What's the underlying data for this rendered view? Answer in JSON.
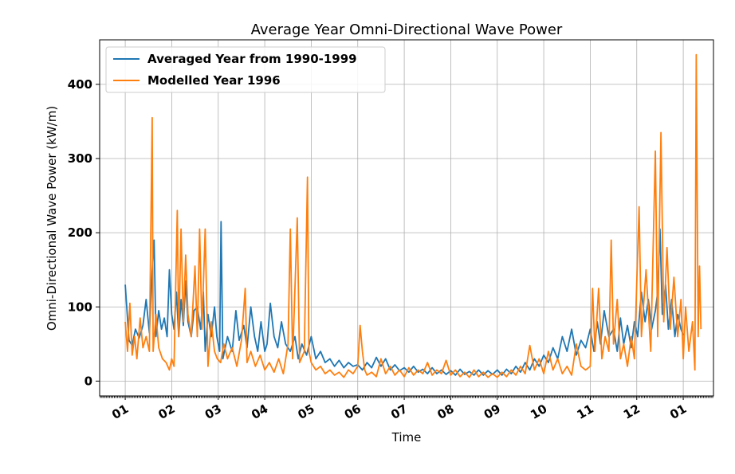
{
  "chart_data": {
    "type": "line",
    "title": "Average Year Omni-Directional Wave Power",
    "xlabel": "Time",
    "ylabel": "Omni-Directional Wave Power (kW/m)",
    "x_ticks": [
      "01",
      "02",
      "03",
      "04",
      "05",
      "06",
      "07",
      "08",
      "09",
      "10",
      "11",
      "12",
      "01"
    ],
    "x_unit": "month",
    "xlim": [
      -0.55,
      12.65
    ],
    "ylim": [
      -20,
      460
    ],
    "y_ticks": [
      0,
      100,
      200,
      300,
      400
    ],
    "grid": true,
    "legend_position": "top-left",
    "series": [
      {
        "name": "Averaged Year from 1990-1999",
        "color": "#1f77b4",
        "points": [
          [
            0.0,
            130
          ],
          [
            0.08,
            55
          ],
          [
            0.15,
            48
          ],
          [
            0.22,
            70
          ],
          [
            0.3,
            58
          ],
          [
            0.38,
            75
          ],
          [
            0.45,
            110
          ],
          [
            0.52,
            65
          ],
          [
            0.58,
            148
          ],
          [
            0.62,
            190
          ],
          [
            0.66,
            60
          ],
          [
            0.72,
            95
          ],
          [
            0.78,
            70
          ],
          [
            0.84,
            85
          ],
          [
            0.9,
            60
          ],
          [
            0.95,
            150
          ],
          [
            1.0,
            90
          ],
          [
            1.05,
            70
          ],
          [
            1.1,
            120
          ],
          [
            1.15,
            60
          ],
          [
            1.2,
            110
          ],
          [
            1.25,
            75
          ],
          [
            1.3,
            135
          ],
          [
            1.35,
            80
          ],
          [
            1.42,
            60
          ],
          [
            1.48,
            95
          ],
          [
            1.55,
            100
          ],
          [
            1.62,
            70
          ],
          [
            1.68,
            120
          ],
          [
            1.72,
            40
          ],
          [
            1.78,
            90
          ],
          [
            1.85,
            60
          ],
          [
            1.92,
            100
          ],
          [
            1.97,
            60
          ],
          [
            2.03,
            40
          ],
          [
            2.06,
            215
          ],
          [
            2.1,
            30
          ],
          [
            2.2,
            60
          ],
          [
            2.3,
            40
          ],
          [
            2.38,
            95
          ],
          [
            2.45,
            55
          ],
          [
            2.55,
            75
          ],
          [
            2.62,
            45
          ],
          [
            2.7,
            100
          ],
          [
            2.78,
            60
          ],
          [
            2.85,
            40
          ],
          [
            2.92,
            80
          ],
          [
            3.0,
            40
          ],
          [
            3.05,
            50
          ],
          [
            3.12,
            105
          ],
          [
            3.2,
            60
          ],
          [
            3.28,
            45
          ],
          [
            3.36,
            80
          ],
          [
            3.45,
            50
          ],
          [
            3.55,
            40
          ],
          [
            3.65,
            60
          ],
          [
            3.72,
            30
          ],
          [
            3.8,
            50
          ],
          [
            3.9,
            35
          ],
          [
            4.0,
            60
          ],
          [
            4.1,
            30
          ],
          [
            4.2,
            40
          ],
          [
            4.3,
            25
          ],
          [
            4.4,
            30
          ],
          [
            4.5,
            20
          ],
          [
            4.6,
            28
          ],
          [
            4.7,
            18
          ],
          [
            4.8,
            25
          ],
          [
            4.9,
            20
          ],
          [
            5.0,
            22
          ],
          [
            5.1,
            15
          ],
          [
            5.2,
            25
          ],
          [
            5.3,
            18
          ],
          [
            5.4,
            32
          ],
          [
            5.5,
            20
          ],
          [
            5.6,
            30
          ],
          [
            5.7,
            15
          ],
          [
            5.8,
            22
          ],
          [
            5.9,
            14
          ],
          [
            6.0,
            18
          ],
          [
            6.1,
            12
          ],
          [
            6.2,
            20
          ],
          [
            6.3,
            12
          ],
          [
            6.4,
            16
          ],
          [
            6.5,
            10
          ],
          [
            6.6,
            18
          ],
          [
            6.7,
            10
          ],
          [
            6.8,
            15
          ],
          [
            6.9,
            9
          ],
          [
            7.0,
            14
          ],
          [
            7.1,
            8
          ],
          [
            7.2,
            16
          ],
          [
            7.3,
            9
          ],
          [
            7.4,
            13
          ],
          [
            7.5,
            8
          ],
          [
            7.6,
            15
          ],
          [
            7.7,
            8
          ],
          [
            7.8,
            14
          ],
          [
            7.9,
            9
          ],
          [
            8.0,
            15
          ],
          [
            8.1,
            8
          ],
          [
            8.2,
            16
          ],
          [
            8.3,
            10
          ],
          [
            8.4,
            20
          ],
          [
            8.5,
            12
          ],
          [
            8.6,
            25
          ],
          [
            8.7,
            15
          ],
          [
            8.8,
            30
          ],
          [
            8.9,
            20
          ],
          [
            9.0,
            35
          ],
          [
            9.1,
            25
          ],
          [
            9.2,
            45
          ],
          [
            9.3,
            30
          ],
          [
            9.4,
            60
          ],
          [
            9.5,
            40
          ],
          [
            9.6,
            70
          ],
          [
            9.7,
            35
          ],
          [
            9.8,
            55
          ],
          [
            9.9,
            45
          ],
          [
            10.0,
            70
          ],
          [
            10.08,
            40
          ],
          [
            10.15,
            80
          ],
          [
            10.22,
            50
          ],
          [
            10.3,
            95
          ],
          [
            10.4,
            60
          ],
          [
            10.5,
            70
          ],
          [
            10.58,
            40
          ],
          [
            10.65,
            85
          ],
          [
            10.72,
            50
          ],
          [
            10.8,
            75
          ],
          [
            10.88,
            45
          ],
          [
            10.95,
            80
          ],
          [
            11.02,
            60
          ],
          [
            11.1,
            120
          ],
          [
            11.18,
            80
          ],
          [
            11.25,
            110
          ],
          [
            11.32,
            70
          ],
          [
            11.4,
            95
          ],
          [
            11.45,
            120
          ],
          [
            11.5,
            205
          ],
          [
            11.55,
            90
          ],
          [
            11.62,
            130
          ],
          [
            11.68,
            70
          ],
          [
            11.75,
            110
          ],
          [
            11.82,
            60
          ],
          [
            11.88,
            90
          ],
          [
            11.95,
            70
          ],
          [
            12.0,
            62
          ]
        ]
      },
      {
        "name": "Modelled Year 1996",
        "color": "#ff7f0e",
        "points": [
          [
            0.0,
            80
          ],
          [
            0.05,
            40
          ],
          [
            0.1,
            105
          ],
          [
            0.15,
            35
          ],
          [
            0.2,
            60
          ],
          [
            0.25,
            30
          ],
          [
            0.32,
            85
          ],
          [
            0.38,
            45
          ],
          [
            0.45,
            60
          ],
          [
            0.52,
            40
          ],
          [
            0.58,
            355
          ],
          [
            0.6,
            40
          ],
          [
            0.66,
            90
          ],
          [
            0.72,
            45
          ],
          [
            0.8,
            30
          ],
          [
            0.88,
            25
          ],
          [
            0.95,
            15
          ],
          [
            1.0,
            30
          ],
          [
            1.05,
            20
          ],
          [
            1.12,
            230
          ],
          [
            1.15,
            60
          ],
          [
            1.2,
            205
          ],
          [
            1.25,
            80
          ],
          [
            1.3,
            170
          ],
          [
            1.35,
            90
          ],
          [
            1.42,
            60
          ],
          [
            1.5,
            155
          ],
          [
            1.55,
            60
          ],
          [
            1.6,
            205
          ],
          [
            1.65,
            70
          ],
          [
            1.72,
            205
          ],
          [
            1.78,
            20
          ],
          [
            1.85,
            80
          ],
          [
            1.92,
            40
          ],
          [
            1.98,
            30
          ],
          [
            2.05,
            25
          ],
          [
            2.12,
            50
          ],
          [
            2.2,
            30
          ],
          [
            2.3,
            45
          ],
          [
            2.4,
            20
          ],
          [
            2.5,
            55
          ],
          [
            2.58,
            125
          ],
          [
            2.62,
            25
          ],
          [
            2.7,
            40
          ],
          [
            2.8,
            20
          ],
          [
            2.9,
            35
          ],
          [
            3.0,
            15
          ],
          [
            3.1,
            25
          ],
          [
            3.2,
            12
          ],
          [
            3.3,
            30
          ],
          [
            3.4,
            10
          ],
          [
            3.5,
            50
          ],
          [
            3.55,
            205
          ],
          [
            3.6,
            30
          ],
          [
            3.7,
            220
          ],
          [
            3.75,
            25
          ],
          [
            3.85,
            40
          ],
          [
            3.92,
            275
          ],
          [
            3.95,
            40
          ],
          [
            4.0,
            25
          ],
          [
            4.1,
            15
          ],
          [
            4.2,
            20
          ],
          [
            4.3,
            10
          ],
          [
            4.4,
            15
          ],
          [
            4.5,
            8
          ],
          [
            4.6,
            12
          ],
          [
            4.7,
            5
          ],
          [
            4.8,
            15
          ],
          [
            4.9,
            10
          ],
          [
            5.0,
            20
          ],
          [
            5.05,
            75
          ],
          [
            5.1,
            40
          ],
          [
            5.15,
            15
          ],
          [
            5.2,
            8
          ],
          [
            5.3,
            12
          ],
          [
            5.4,
            6
          ],
          [
            5.5,
            30
          ],
          [
            5.6,
            10
          ],
          [
            5.7,
            20
          ],
          [
            5.8,
            8
          ],
          [
            5.9,
            15
          ],
          [
            6.0,
            6
          ],
          [
            6.1,
            18
          ],
          [
            6.2,
            8
          ],
          [
            6.3,
            15
          ],
          [
            6.4,
            10
          ],
          [
            6.5,
            25
          ],
          [
            6.6,
            8
          ],
          [
            6.7,
            15
          ],
          [
            6.8,
            10
          ],
          [
            6.9,
            28
          ],
          [
            7.0,
            8
          ],
          [
            7.1,
            15
          ],
          [
            7.2,
            6
          ],
          [
            7.3,
            12
          ],
          [
            7.4,
            5
          ],
          [
            7.5,
            15
          ],
          [
            7.6,
            6
          ],
          [
            7.7,
            12
          ],
          [
            7.8,
            5
          ],
          [
            7.9,
            10
          ],
          [
            8.0,
            5
          ],
          [
            8.1,
            12
          ],
          [
            8.2,
            6
          ],
          [
            8.3,
            15
          ],
          [
            8.4,
            8
          ],
          [
            8.5,
            20
          ],
          [
            8.6,
            10
          ],
          [
            8.7,
            48
          ],
          [
            8.8,
            15
          ],
          [
            8.9,
            30
          ],
          [
            9.0,
            10
          ],
          [
            9.1,
            40
          ],
          [
            9.2,
            15
          ],
          [
            9.3,
            30
          ],
          [
            9.4,
            10
          ],
          [
            9.5,
            20
          ],
          [
            9.6,
            8
          ],
          [
            9.7,
            50
          ],
          [
            9.8,
            20
          ],
          [
            9.9,
            15
          ],
          [
            10.0,
            20
          ],
          [
            10.05,
            125
          ],
          [
            10.1,
            40
          ],
          [
            10.18,
            125
          ],
          [
            10.25,
            30
          ],
          [
            10.32,
            60
          ],
          [
            10.4,
            40
          ],
          [
            10.45,
            190
          ],
          [
            10.5,
            50
          ],
          [
            10.58,
            110
          ],
          [
            10.65,
            30
          ],
          [
            10.72,
            50
          ],
          [
            10.8,
            20
          ],
          [
            10.88,
            60
          ],
          [
            10.95,
            30
          ],
          [
            11.05,
            235
          ],
          [
            11.1,
            60
          ],
          [
            11.2,
            150
          ],
          [
            11.3,
            40
          ],
          [
            11.4,
            310
          ],
          [
            11.45,
            60
          ],
          [
            11.52,
            335
          ],
          [
            11.58,
            80
          ],
          [
            11.65,
            180
          ],
          [
            11.72,
            70
          ],
          [
            11.8,
            140
          ],
          [
            11.88,
            60
          ],
          [
            11.95,
            110
          ],
          [
            12.0,
            30
          ],
          [
            12.05,
            100
          ],
          [
            12.12,
            40
          ],
          [
            12.2,
            80
          ],
          [
            12.25,
            15
          ],
          [
            12.28,
            440
          ],
          [
            12.32,
            60
          ],
          [
            12.35,
            155
          ],
          [
            12.38,
            70
          ]
        ]
      }
    ]
  }
}
